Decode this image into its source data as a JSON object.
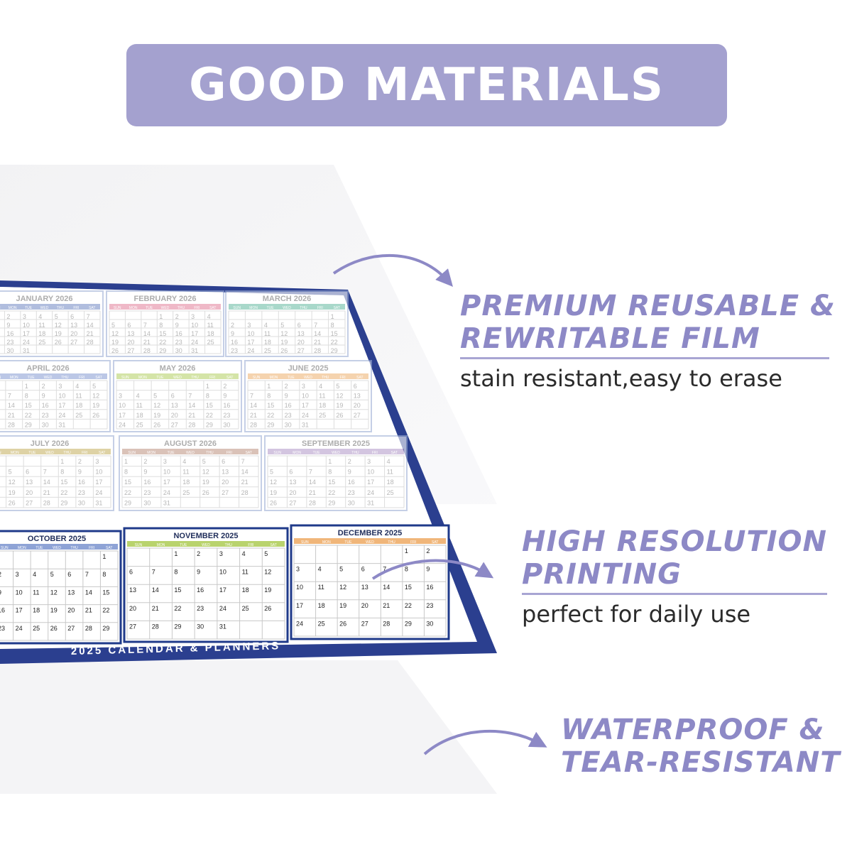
{
  "banner": {
    "title": "GOOD MATERIALS"
  },
  "features": [
    {
      "line1": "PREMIUM REUSABLE &",
      "line2": "REWRITABLE FILM",
      "subtitle": "stain resistant,easy to erase"
    },
    {
      "line1": "HIGH RESOLUTION",
      "line2": "PRINTING",
      "subtitle": "perfect for daily use"
    },
    {
      "line1": "WATERPROOF &",
      "line2": "TEAR-RESISTANT",
      "subtitle": ""
    }
  ],
  "calendar": {
    "footer": "2025 CALENDAR & PLANNERS",
    "months_faded": [
      "JANUARY 2026",
      "FEBRUARY 2026",
      "MARCH 2026",
      "APRIL 2026",
      "MAY 2026",
      "JUNE 2025",
      "JULY 2026",
      "AUGUST 2026",
      "SEPTEMBER 2025"
    ],
    "months_bottom": [
      "OCTOBER 2025",
      "NOVEMBER 2025",
      "DECEMBER 2025"
    ],
    "weekdays": [
      "SUN",
      "MON",
      "TUE",
      "WED",
      "THU",
      "FRI",
      "SAT"
    ],
    "header_colors": [
      "#7c92c9",
      "#e58aa3",
      "#6fbfa8",
      "#8ea3d6",
      "#b9d36d",
      "#f0b67a",
      "#c9b56a",
      "#c39a8a",
      "#b7a0cc"
    ],
    "brand_color": "#1f3a8a",
    "accent_color": "#8d89c6"
  }
}
